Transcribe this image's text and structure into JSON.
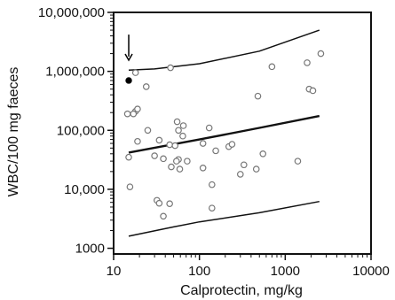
{
  "chart_data": {
    "type": "scatter",
    "title": "",
    "xlabel": "Calprotectin, mg/kg",
    "ylabel": "WBC/100 mg faeces",
    "x_scale": "log",
    "y_scale": "log",
    "xlim": [
      10,
      10000
    ],
    "ylim": [
      800,
      10000000
    ],
    "x_ticks": [
      10,
      100,
      1000,
      10000
    ],
    "x_tick_labels": [
      "10",
      "100",
      "1000",
      "10000"
    ],
    "y_ticks": [
      1000,
      10000,
      100000,
      1000000,
      10000000
    ],
    "y_tick_labels": [
      "1000",
      "10,000",
      "100,000",
      "1,000,000",
      "10,000,000"
    ],
    "grid": false,
    "legend": "none",
    "colors": {
      "axis": "#111111",
      "points": "#777777",
      "lines": "#111111"
    },
    "series": [
      {
        "kind": "open-points",
        "points": [
          [
            18,
            950000
          ],
          [
            24,
            550000
          ],
          [
            46,
            1150000
          ],
          [
            700,
            1200000
          ],
          [
            1800,
            1400000
          ],
          [
            2600,
            2000000
          ],
          [
            1900,
            500000
          ],
          [
            2100,
            470000
          ],
          [
            480,
            380000
          ],
          [
            14.5,
            190000
          ],
          [
            18,
            210000
          ],
          [
            19,
            230000
          ],
          [
            17,
            190000
          ],
          [
            55,
            140000
          ],
          [
            65,
            120000
          ],
          [
            130,
            110000
          ],
          [
            25,
            100000
          ],
          [
            57,
            100000
          ],
          [
            64,
            80000
          ],
          [
            19,
            65000
          ],
          [
            34,
            68000
          ],
          [
            45,
            57000
          ],
          [
            52,
            55000
          ],
          [
            110,
            60000
          ],
          [
            220,
            53000
          ],
          [
            240,
            58000
          ],
          [
            15,
            35000
          ],
          [
            30,
            37000
          ],
          [
            38,
            33000
          ],
          [
            57,
            32000
          ],
          [
            54,
            30000
          ],
          [
            72,
            30000
          ],
          [
            155,
            45000
          ],
          [
            550,
            40000
          ],
          [
            47,
            24000
          ],
          [
            59,
            22000
          ],
          [
            110,
            23000
          ],
          [
            330,
            26000
          ],
          [
            460,
            22000
          ],
          [
            1400,
            30000
          ],
          [
            300,
            18000
          ],
          [
            15.5,
            11000
          ],
          [
            140,
            12000
          ],
          [
            32,
            6500
          ],
          [
            34,
            5800
          ],
          [
            45,
            5700
          ],
          [
            38,
            3500
          ],
          [
            140,
            4800
          ]
        ]
      },
      {
        "kind": "filled-points",
        "points": [
          [
            15,
            700000
          ]
        ]
      },
      {
        "kind": "regression-line",
        "points": [
          [
            15,
            42000
          ],
          [
            100,
            70000
          ],
          [
            500,
            110000
          ],
          [
            2500,
            175000
          ]
        ]
      },
      {
        "kind": "upper-bound",
        "points": [
          [
            15,
            1050000
          ],
          [
            30,
            1100000
          ],
          [
            100,
            1350000
          ],
          [
            500,
            2200000
          ],
          [
            2500,
            5000000
          ]
        ]
      },
      {
        "kind": "lower-bound",
        "points": [
          [
            15,
            1600
          ],
          [
            50,
            2300
          ],
          [
            100,
            2800
          ],
          [
            500,
            4000
          ],
          [
            2500,
            6200
          ]
        ]
      }
    ],
    "annotations": [
      {
        "kind": "arrow",
        "x": 15,
        "y_from": 4200000,
        "y_to": 1550000
      }
    ]
  }
}
